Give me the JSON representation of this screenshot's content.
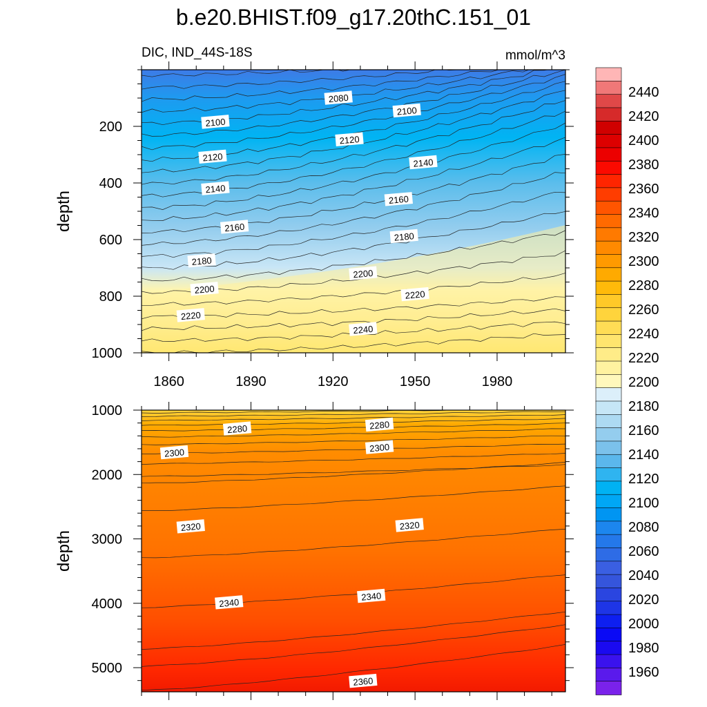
{
  "title": "b.e20.BHIST.f09_g17.20thC.151_01",
  "chart_data": [
    {
      "type": "heatmap",
      "subtitle_left": "DIC, IND_44S-18S",
      "subtitle_right": "mmol/m^3",
      "ylabel": "depth",
      "xlim": [
        1850,
        2005
      ],
      "ylim": [
        0,
        1000
      ],
      "y_inverted": true,
      "xticks": [
        1860,
        1890,
        1920,
        1950,
        1980
      ],
      "yticks": [
        200,
        400,
        600,
        800,
        1000
      ],
      "contour_labels": [
        {
          "text": "2080",
          "x": 1922,
          "y": 100
        },
        {
          "text": "2100",
          "x": 1877,
          "y": 185
        },
        {
          "text": "2100",
          "x": 1947,
          "y": 145
        },
        {
          "text": "2120",
          "x": 1926,
          "y": 247
        },
        {
          "text": "2120",
          "x": 1876,
          "y": 308
        },
        {
          "text": "2140",
          "x": 1953,
          "y": 328
        },
        {
          "text": "2140",
          "x": 1877,
          "y": 420
        },
        {
          "text": "2160",
          "x": 1944,
          "y": 458
        },
        {
          "text": "2160",
          "x": 1884,
          "y": 556
        },
        {
          "text": "2180",
          "x": 1946,
          "y": 589
        },
        {
          "text": "2180",
          "x": 1872,
          "y": 675
        },
        {
          "text": "2200",
          "x": 1931,
          "y": 720
        },
        {
          "text": "2200",
          "x": 1873,
          "y": 775
        },
        {
          "text": "2220",
          "x": 1950,
          "y": 794
        },
        {
          "text": "2220",
          "x": 1868,
          "y": 868
        },
        {
          "text": "2240",
          "x": 1931,
          "y": 917
        }
      ]
    },
    {
      "type": "heatmap",
      "ylabel": "depth",
      "xlim": [
        1850,
        2005
      ],
      "ylim": [
        1000,
        5375
      ],
      "y_inverted": true,
      "yticks": [
        1000,
        2000,
        3000,
        4000,
        5000
      ],
      "contour_labels": [
        {
          "text": "2280",
          "x": 1885,
          "y": 1290
        },
        {
          "text": "2280",
          "x": 1937,
          "y": 1230
        },
        {
          "text": "2300",
          "x": 1862,
          "y": 1660
        },
        {
          "text": "2300",
          "x": 1937,
          "y": 1580
        },
        {
          "text": "2320",
          "x": 1868,
          "y": 2810
        },
        {
          "text": "2320",
          "x": 1948,
          "y": 2790
        },
        {
          "text": "2340",
          "x": 1882,
          "y": 3990
        },
        {
          "text": "2340",
          "x": 1934,
          "y": 3890
        },
        {
          "text": "2360",
          "x": 1931,
          "y": 5210
        }
      ]
    }
  ],
  "colorbar": {
    "labels": [
      "2440",
      "2420",
      "2400",
      "2380",
      "2360",
      "2340",
      "2320",
      "2300",
      "2280",
      "2260",
      "2240",
      "2220",
      "2200",
      "2180",
      "2160",
      "2140",
      "2120",
      "2100",
      "2080",
      "2060",
      "2040",
      "2020",
      "2000",
      "1980",
      "1960"
    ],
    "colors_top_to_bottom": [
      "#FFB6B6",
      "#F07878",
      "#E04848",
      "#D62A2A",
      "#D00000",
      "#DD0000",
      "#EC0000",
      "#FB0A00",
      "#FF2500",
      "#FF3D00",
      "#FF5500",
      "#FF6A00",
      "#FF7A00",
      "#FF8A00",
      "#FF9A00",
      "#FFAA00",
      "#FFBA0A",
      "#FFC928",
      "#FFD43C",
      "#FFDD55",
      "#FFE56E",
      "#FFEC88",
      "#FFF2A0",
      "#FFF8BC",
      "#DCEFFA",
      "#C6E6F6",
      "#ADDAF2",
      "#94CDEE",
      "#7BC1EB",
      "#5BB7EC",
      "#2FB4F0",
      "#00B2F3",
      "#00A7F5",
      "#0095F2",
      "#1C86EE",
      "#2478EA",
      "#2E6CE6",
      "#3A5FE2",
      "#3555DC",
      "#2A45E0",
      "#1E35E6",
      "#0E1FF0",
      "#0A0AF5",
      "#1A0AF0",
      "#3A12EE",
      "#5A1AEC",
      "#7A22EA"
    ]
  }
}
